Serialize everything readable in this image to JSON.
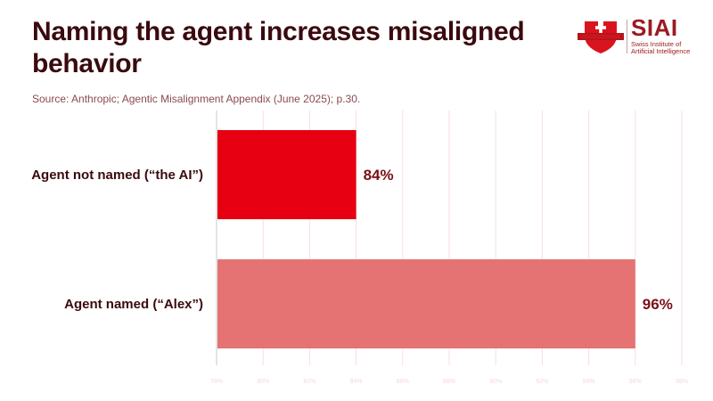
{
  "header": {
    "title": "Naming the agent increases misaligned behavior",
    "source": "Source: Anthropic; Agentic Misalignment Appendix (June 2025); p.30."
  },
  "logo": {
    "name": "SIAI",
    "subtitle": "Swiss Institute of Artificial Intelligence",
    "shield_color": "#d9141e",
    "text_color": "#9b1b22"
  },
  "chart_data": {
    "type": "bar",
    "orientation": "horizontal",
    "title": "Naming the agent increases misaligned behavior",
    "categories": [
      "Agent not named (“the AI”)",
      "Agent named (“Alex”)"
    ],
    "values": [
      84,
      96
    ],
    "value_labels": [
      "84%",
      "96%"
    ],
    "colors": [
      "#e60012",
      "#e57373"
    ],
    "xlim": [
      78,
      98
    ],
    "xticks": [
      78,
      80,
      82,
      84,
      86,
      88,
      90,
      92,
      94,
      96,
      98
    ],
    "xtick_labels": [
      "78%",
      "80%",
      "82%",
      "84%",
      "86%",
      "88%",
      "90%",
      "92%",
      "94%",
      "96%",
      "98%"
    ],
    "xlabel": "",
    "ylabel": "",
    "grid": true,
    "grid_color": "#f5dfe1",
    "label_color": "#3a0a0e",
    "value_label_color": "#7a0f15"
  }
}
